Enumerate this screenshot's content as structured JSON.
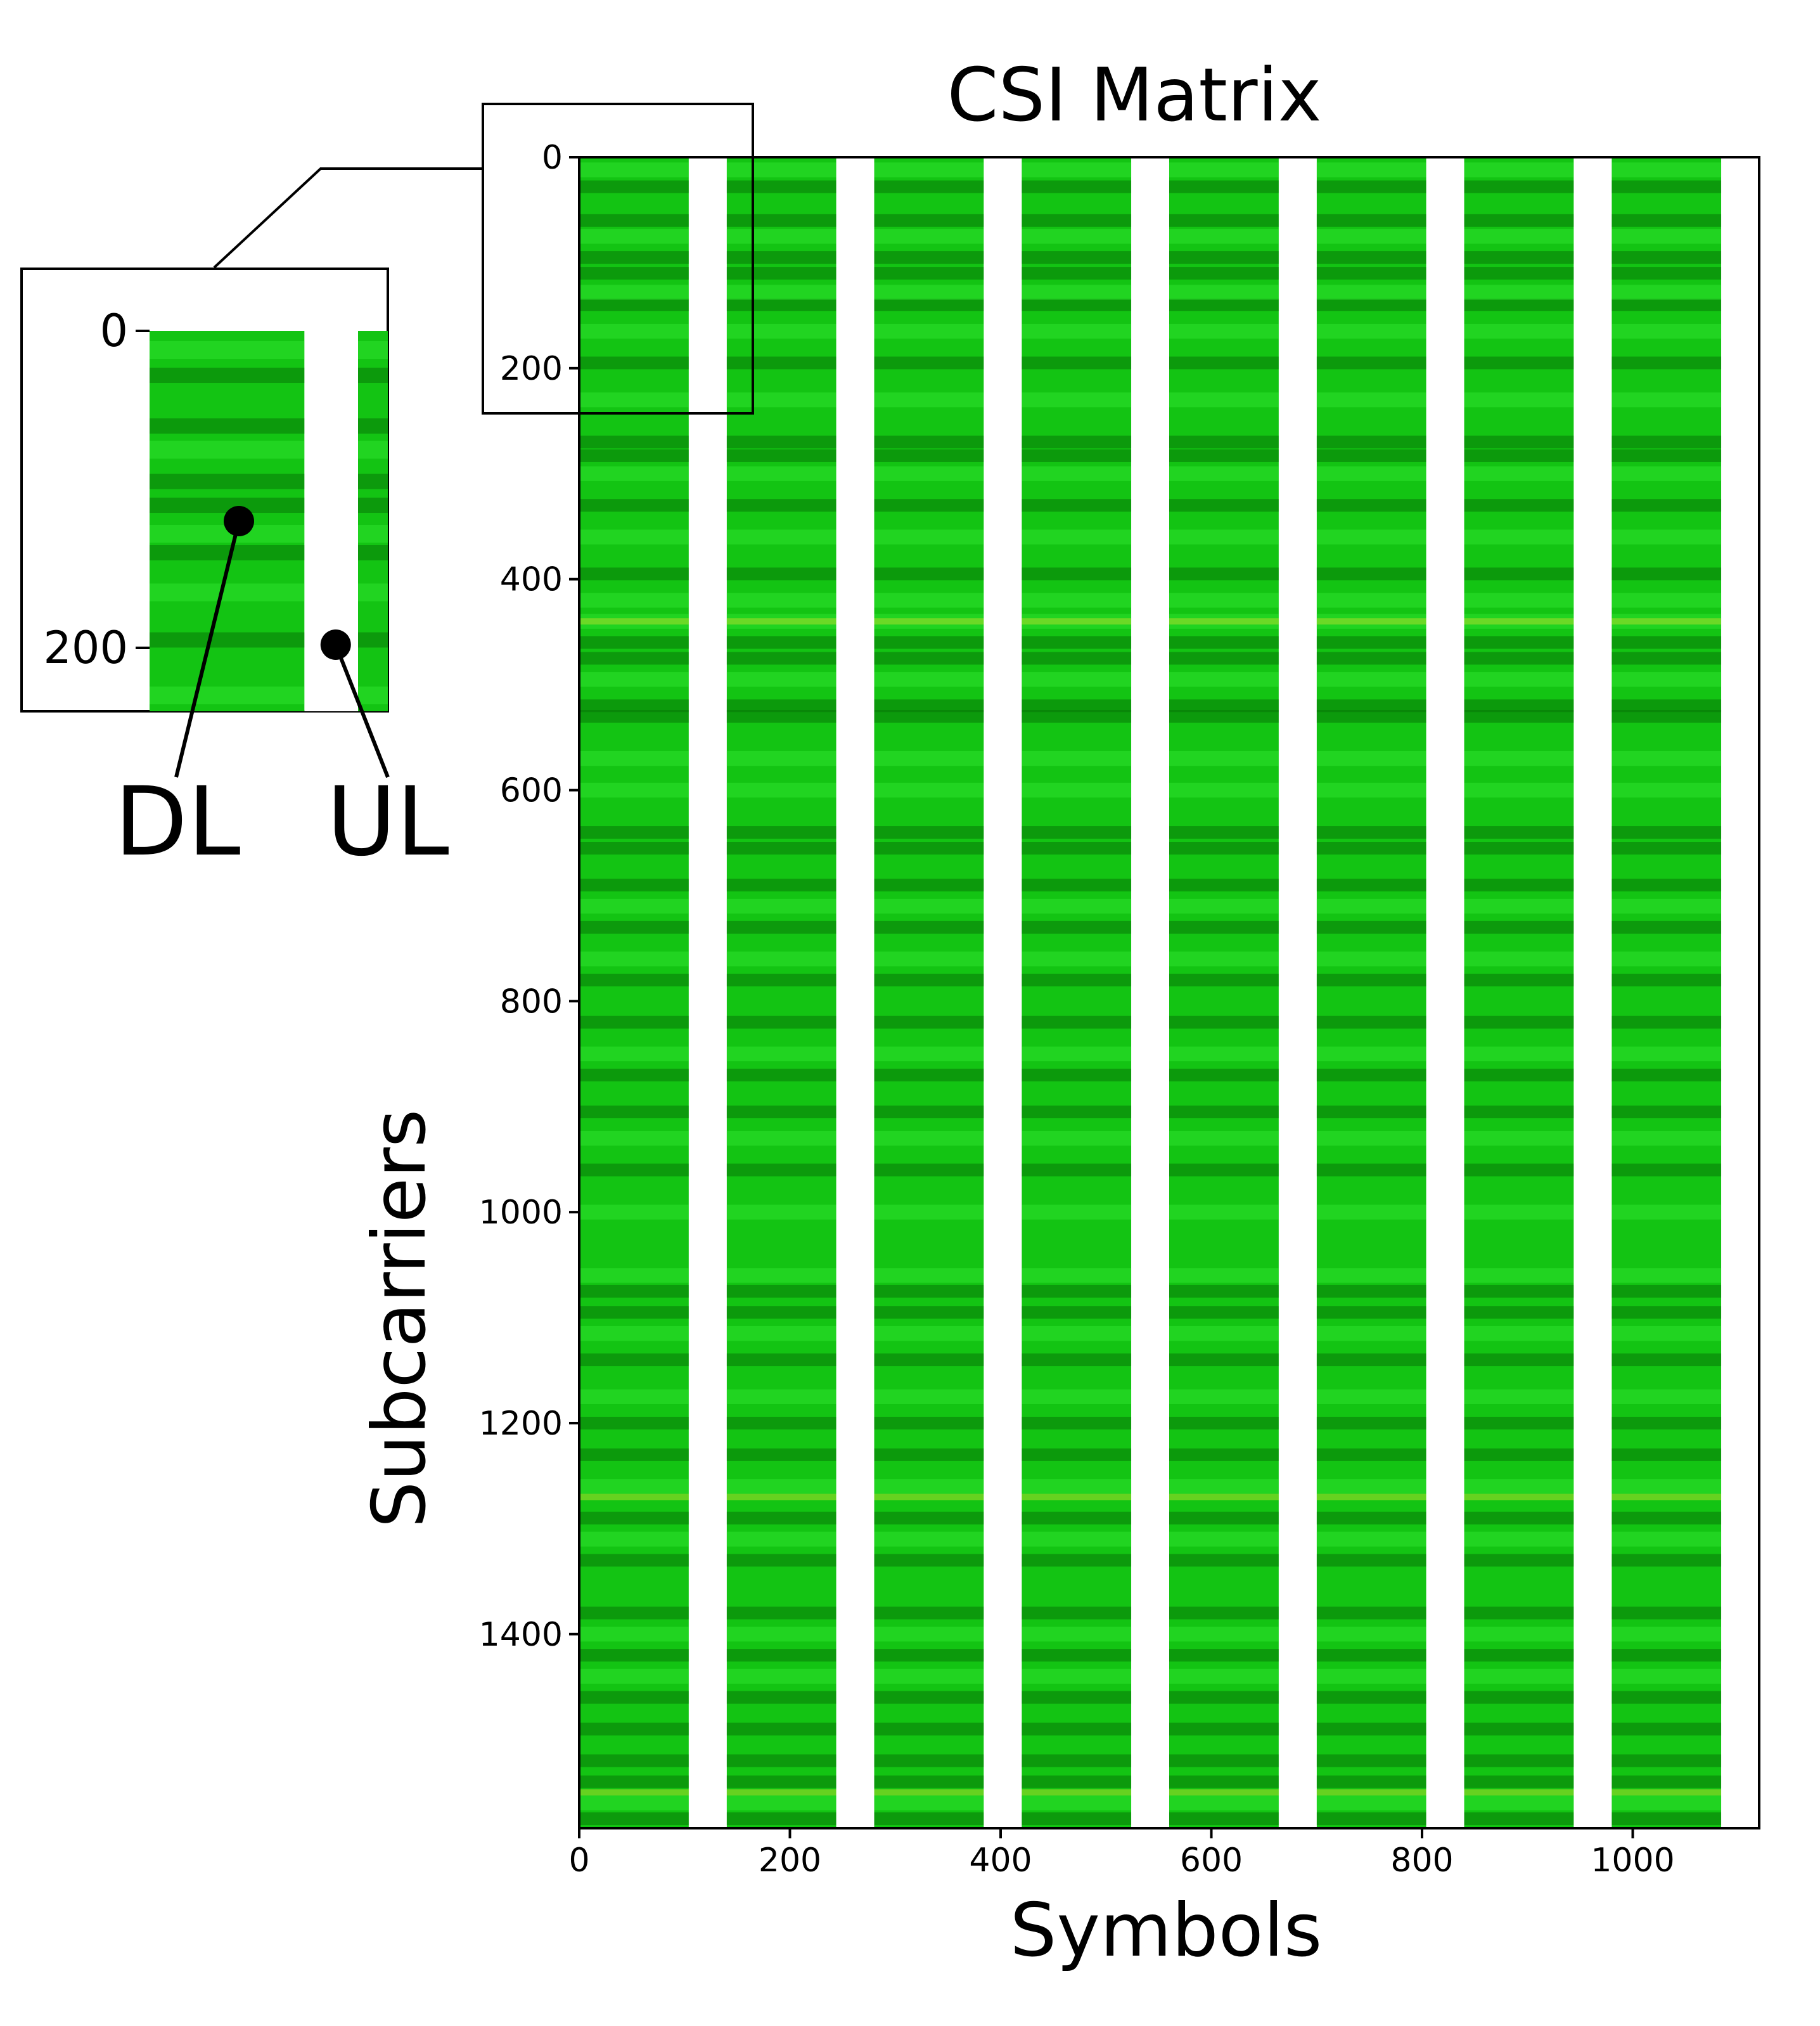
{
  "chart_data": {
    "type": "heatmap",
    "title": "CSI Matrix",
    "xlabel": "Symbols",
    "ylabel": "Subcarriers",
    "xlim": [
      0,
      1120
    ],
    "ylim": [
      1584,
      0
    ],
    "x_ticks": [
      0,
      200,
      400,
      600,
      800,
      1000
    ],
    "y_ticks": [
      0,
      200,
      400,
      600,
      800,
      1000,
      1200,
      1400
    ],
    "colormap": {
      "base": "#13c413",
      "dark": "#087808",
      "light": "#2ee22e",
      "bright": "#9fdc2a",
      "gap": "#ffffff"
    },
    "frame_period": 140,
    "dl_symbols": [
      [
        0,
        104
      ],
      [
        140,
        244
      ],
      [
        280,
        384
      ],
      [
        420,
        524
      ],
      [
        560,
        664
      ],
      [
        700,
        804
      ],
      [
        840,
        944
      ],
      [
        980,
        1084
      ]
    ],
    "ul_symbols": [
      [
        104,
        140
      ],
      [
        244,
        280
      ],
      [
        384,
        420
      ],
      [
        524,
        560
      ],
      [
        664,
        700
      ],
      [
        804,
        840
      ],
      [
        944,
        980
      ],
      [
        1084,
        1120
      ]
    ],
    "dark_bands": [
      28,
      60,
      95,
      110,
      140,
      195,
      270,
      283,
      330,
      395,
      460,
      475,
      520,
      530,
      640,
      655,
      690,
      730,
      780,
      820,
      870,
      905,
      960,
      1075,
      1095,
      1140,
      1200,
      1230,
      1290,
      1330,
      1380,
      1420,
      1460,
      1490,
      1520,
      1540,
      1575
    ],
    "light_bands": [
      12,
      75,
      128,
      165,
      230,
      300,
      360,
      420,
      440,
      495,
      570,
      600,
      710,
      760,
      850,
      930,
      1000,
      1060,
      1115,
      1175,
      1260,
      1310,
      1400,
      1440,
      1560
    ],
    "bright_bands": [
      440,
      1270,
      1550
    ],
    "inset": {
      "xlim": [
        0,
        160
      ],
      "ylim": [
        240,
        0
      ],
      "y_ticks": [
        0,
        200
      ],
      "annotations": [
        {
          "label": "DL",
          "point": [
            60,
            120
          ]
        },
        {
          "label": "UL",
          "point": [
            125,
            198
          ]
        }
      ]
    }
  }
}
